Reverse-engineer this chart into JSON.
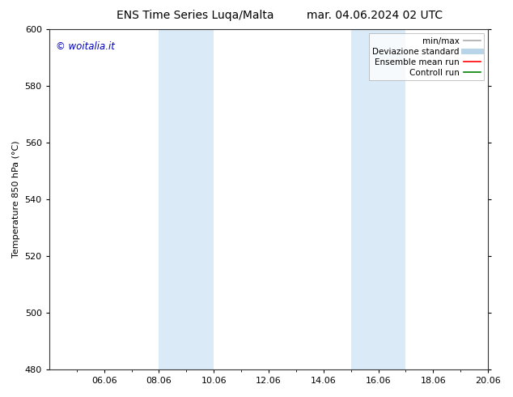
{
  "title_left": "ENS Time Series Luqa/Malta",
  "title_right": "mar. 04.06.2024 02 UTC",
  "ylabel": "Temperature 850 hPa (°C)",
  "ylim": [
    480,
    600
  ],
  "yticks": [
    480,
    500,
    520,
    540,
    560,
    580,
    600
  ],
  "xlim": [
    0,
    16
  ],
  "xtick_positions": [
    2,
    4,
    6,
    8,
    10,
    12,
    14,
    16
  ],
  "xtick_labels": [
    "06.06",
    "08.06",
    "10.06",
    "12.06",
    "14.06",
    "16.06",
    "18.06",
    "20.06"
  ],
  "shaded_bands": [
    {
      "x_start": 4,
      "x_end": 6,
      "color": "#daeaf7"
    },
    {
      "x_start": 11,
      "x_end": 13,
      "color": "#daeaf7"
    }
  ],
  "legend_entries": [
    {
      "label": "min/max",
      "color": "#aaaaaa",
      "lw": 1.2
    },
    {
      "label": "Deviazione standard",
      "color": "#b8d4e8",
      "lw": 5.0
    },
    {
      "label": "Ensemble mean run",
      "color": "#ff0000",
      "lw": 1.2
    },
    {
      "label": "Controll run",
      "color": "#008000",
      "lw": 1.2
    }
  ],
  "watermark_text": "© woitalia.it",
  "watermark_color": "#0000bb",
  "bg_color": "#ffffff",
  "plot_bg_color": "#ffffff",
  "title_fontsize": 10,
  "label_fontsize": 8,
  "tick_fontsize": 8,
  "legend_fontsize": 7.5
}
